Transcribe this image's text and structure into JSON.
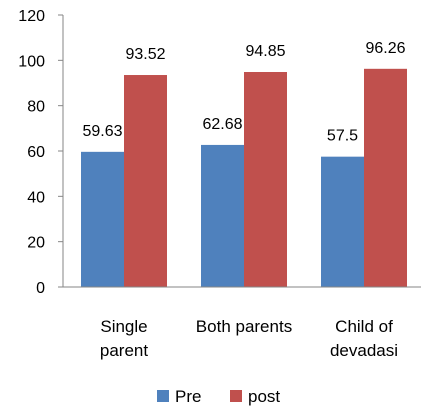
{
  "chart_data": {
    "type": "bar",
    "categories": [
      [
        "Single",
        "parent"
      ],
      [
        "Both parents"
      ],
      [
        "Child of",
        "devadasi"
      ]
    ],
    "series": [
      {
        "name": "Pre",
        "values": [
          59.63,
          62.68,
          57.5
        ],
        "labels": [
          "59.63",
          "62.68",
          "57.5"
        ],
        "color": "#4F81BD"
      },
      {
        "name": "post",
        "values": [
          93.52,
          94.85,
          96.26
        ],
        "labels": [
          "93.52",
          "94.85",
          "96.26"
        ],
        "color": "#C0504D"
      }
    ],
    "ylim": [
      0,
      120
    ],
    "yticks": [
      "0",
      "20",
      "40",
      "60",
      "80",
      "100",
      "120"
    ],
    "xlabel": "",
    "ylabel": "",
    "title": "",
    "legend": "bottom",
    "grid": false
  }
}
